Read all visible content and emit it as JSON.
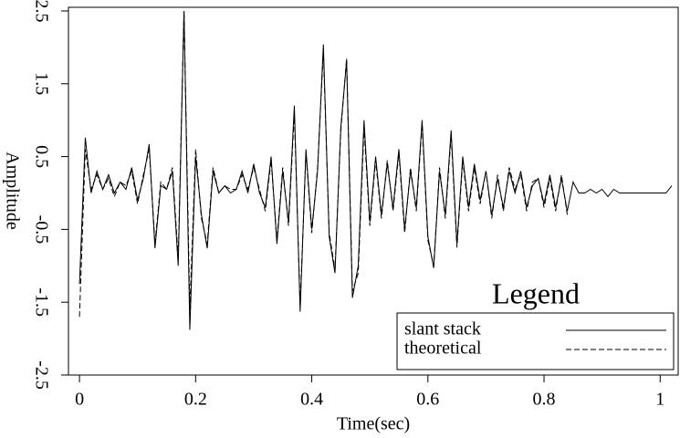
{
  "chart_data": {
    "type": "line",
    "x_label": "Time(sec)",
    "y_label": "Amplitude",
    "legend_title": "Legend",
    "legend_position": "lower right",
    "x": [
      0,
      0.01,
      0.02,
      0.03,
      0.04,
      0.05,
      0.06,
      0.07,
      0.08,
      0.09,
      0.1,
      0.11,
      0.12,
      0.13,
      0.14,
      0.15,
      0.16,
      0.17,
      0.18,
      0.19,
      0.2,
      0.21,
      0.22,
      0.23,
      0.24,
      0.25,
      0.26,
      0.27,
      0.28,
      0.29,
      0.3,
      0.31,
      0.32,
      0.33,
      0.34,
      0.35,
      0.36,
      0.37,
      0.38,
      0.39,
      0.4,
      0.41,
      0.42,
      0.43,
      0.44,
      0.45,
      0.46,
      0.47,
      0.48,
      0.49,
      0.5,
      0.51,
      0.52,
      0.53,
      0.54,
      0.55,
      0.56,
      0.57,
      0.58,
      0.59,
      0.6,
      0.61,
      0.62,
      0.63,
      0.64,
      0.65,
      0.66,
      0.67,
      0.68,
      0.69,
      0.7,
      0.71,
      0.72,
      0.73,
      0.74,
      0.75,
      0.76,
      0.77,
      0.78,
      0.79,
      0.8,
      0.81,
      0.82,
      0.83,
      0.84,
      0.85,
      0.86,
      0.87,
      0.88,
      0.89,
      0.9,
      0.91,
      0.92,
      0.93,
      0.94,
      0.95,
      0.96,
      0.97,
      0.98,
      0.99,
      1,
      1.01,
      1.02
    ],
    "series": [
      {
        "name": "slant stack",
        "color": "#000000",
        "linestyle": "solid",
        "values": [
          -1.25,
          0.76,
          0,
          0.3,
          0.05,
          0.25,
          0,
          0.15,
          0.05,
          0.35,
          -0.1,
          0.2,
          0.67,
          -0.76,
          0.1,
          0.05,
          0.3,
          -1,
          2.5,
          -1.88,
          0.5,
          -0.3,
          -0.76,
          0.3,
          0,
          0.1,
          0,
          0.05,
          0.3,
          0,
          0.4,
          0,
          -0.2,
          0.5,
          -0.7,
          0.3,
          -0.4,
          1.2,
          -1.63,
          0.6,
          -0.5,
          0.3,
          2.04,
          -0.6,
          -1.1,
          0.9,
          1.81,
          -1.44,
          -1,
          1,
          -0.4,
          0.5,
          -0.3,
          0.4,
          -0.2,
          0.6,
          -0.5,
          0.3,
          -0.2,
          1,
          -0.6,
          -1.03,
          0.3,
          -0.3,
          0.86,
          -0.7,
          0.5,
          -0.2,
          0.4,
          -0.1,
          0.3,
          -0.3,
          0.2,
          -0.2,
          0.3,
          0,
          0.3,
          -0.2,
          0.1,
          0.2,
          -0.15,
          0.25,
          -0.2,
          0.2,
          -0.25,
          0.15,
          0,
          0,
          0.05,
          0,
          0.05,
          -0.05,
          0.05,
          0,
          0,
          0,
          0,
          0,
          0,
          0,
          0,
          0,
          0.1
        ]
      },
      {
        "name": "theoretical",
        "color": "#000000",
        "linestyle": "dashed",
        "values": [
          -1.7,
          0.6,
          0.05,
          0.25,
          0.05,
          0.2,
          -0.05,
          0.15,
          0.1,
          0.3,
          -0.15,
          0.25,
          0.6,
          -0.7,
          0.15,
          0.05,
          0.35,
          -0.9,
          2.5,
          -1.6,
          0.6,
          -0.35,
          -0.7,
          0.35,
          0,
          0.1,
          0.05,
          0.05,
          0.25,
          0.05,
          0.35,
          0.05,
          -0.25,
          0.45,
          -0.65,
          0.35,
          -0.45,
          1.1,
          -1.55,
          0.55,
          -0.55,
          0.35,
          1.95,
          -0.55,
          -1.05,
          0.85,
          1.85,
          -1.35,
          -1.1,
          0.9,
          -0.45,
          0.45,
          -0.35,
          0.45,
          -0.25,
          0.55,
          -0.55,
          0.35,
          -0.25,
          0.95,
          -0.65,
          -1,
          0.35,
          -0.35,
          0.8,
          -0.75,
          0.45,
          -0.25,
          0.35,
          -0.15,
          0.3,
          -0.35,
          0.25,
          -0.25,
          0.35,
          0.05,
          0.25,
          -0.25,
          0.15,
          0.2,
          -0.2,
          0.2,
          -0.25,
          0.25,
          -0.3,
          null,
          null,
          null,
          null,
          null,
          null,
          null,
          null,
          null,
          null,
          null,
          null,
          null,
          null,
          null,
          null,
          null,
          null
        ]
      }
    ],
    "xlim": [
      -0.019,
      1.031
    ],
    "ylim": [
      -2.5,
      2.55
    ],
    "xticks": [
      0,
      0.2,
      0.4,
      0.6,
      0.8,
      1
    ],
    "yticks": [
      -2.5,
      -1.5,
      -0.5,
      0.5,
      1.5,
      2.5
    ]
  }
}
